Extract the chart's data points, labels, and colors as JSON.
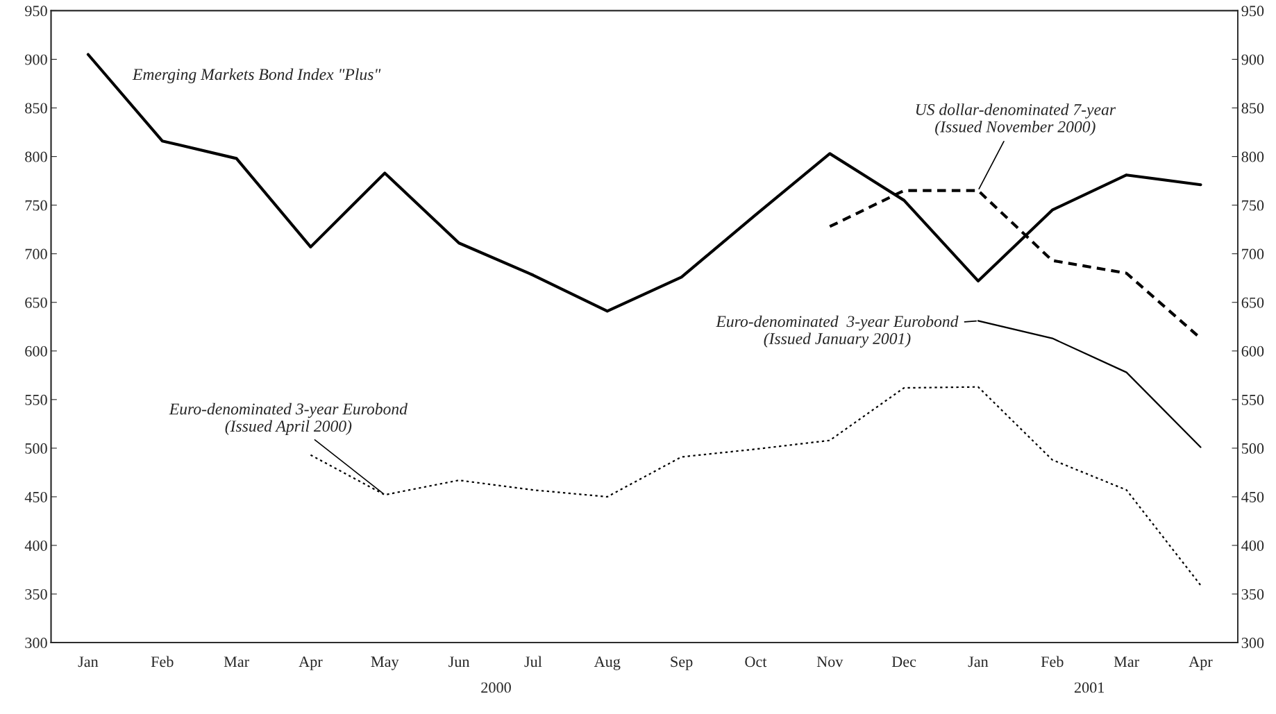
{
  "chart_data": {
    "type": "line",
    "categories": [
      "Jan",
      "Feb",
      "Mar",
      "Apr",
      "May",
      "Jun",
      "Jul",
      "Aug",
      "Sep",
      "Oct",
      "Nov",
      "Dec",
      "Jan",
      "Feb",
      "Mar",
      "Apr"
    ],
    "series": [
      {
        "name": "Emerging Markets Bond Index \"Plus\"",
        "color": "#000000",
        "line_style": "solid",
        "values": [
          905,
          816,
          798,
          707,
          783,
          711,
          678,
          641,
          676,
          740,
          803,
          755,
          672,
          745,
          781,
          771
        ]
      },
      {
        "name": "US dollar-denominated 7-year\n(Issued November 2000)",
        "color": "#000000",
        "line_style": "dashed",
        "values": [
          null,
          null,
          null,
          null,
          null,
          null,
          null,
          null,
          null,
          null,
          728,
          765,
          765,
          693,
          680,
          613
        ]
      },
      {
        "name": "Euro-denominated  3-year Eurobond\n(Issued January 2001)",
        "color": "#000000",
        "line_style": "solid",
        "values": [
          null,
          null,
          null,
          null,
          null,
          null,
          null,
          null,
          null,
          null,
          null,
          null,
          631,
          613,
          578,
          501
        ]
      },
      {
        "name": "Euro-denominated 3-year Eurobond\n(Issued April 2000)",
        "color": "#000000",
        "line_style": "dotted",
        "values": [
          null,
          null,
          null,
          493,
          452,
          467,
          457,
          450,
          491,
          499,
          508,
          562,
          563,
          488,
          457,
          359
        ]
      }
    ],
    "ylim": [
      300,
      950
    ],
    "yticks": [
      300,
      350,
      400,
      450,
      500,
      550,
      600,
      650,
      700,
      750,
      800,
      850,
      900,
      950
    ],
    "y2lim": [
      300,
      950
    ],
    "y2ticks": [
      300,
      350,
      400,
      450,
      500,
      550,
      600,
      650,
      700,
      750,
      800,
      850,
      900,
      950
    ],
    "annotations": [
      "2000",
      "2001"
    ],
    "grid": false,
    "marker": "none"
  }
}
